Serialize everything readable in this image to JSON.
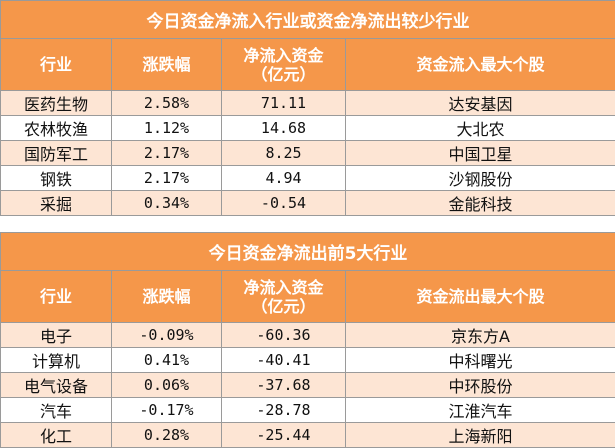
{
  "table1": {
    "title": "今日资金净流入行业或资金净流出较少行业",
    "headers": [
      "行业",
      "涨跌幅",
      "净流入资金\n（亿元）",
      "资金流入最大个股"
    ],
    "rows": [
      [
        "医药生物",
        "2.58%",
        "71.11",
        "达安基因"
      ],
      [
        "农林牧渔",
        "1.12%",
        "14.68",
        "大北农"
      ],
      [
        "国防军工",
        "2.17%",
        "8.25",
        "中国卫星"
      ],
      [
        "钢铁",
        "2.17%",
        "4.94",
        "沙钢股份"
      ],
      [
        "采掘",
        "0.34%",
        "-0.54",
        "金能科技"
      ]
    ]
  },
  "table2": {
    "title": "今日资金净流出前5大行业",
    "headers": [
      "行业",
      "涨跌幅",
      "净流入资金\n（亿元）",
      "资金流出最大个股"
    ],
    "rows": [
      [
        "电子",
        "-0.09%",
        "-60.36",
        "京东方A"
      ],
      [
        "计算机",
        "0.41%",
        "-40.41",
        "中科曙光"
      ],
      [
        "电气设备",
        "0.06%",
        "-37.68",
        "中环股份"
      ],
      [
        "汽车",
        "-0.17%",
        "-28.78",
        "江淮汽车"
      ],
      [
        "化工",
        "0.28%",
        "-25.44",
        "上海新阳"
      ]
    ]
  },
  "colors": {
    "header_bg": "#f5974a",
    "alt_row_bg": "#fde5d4",
    "border": "#9a9a9a"
  }
}
